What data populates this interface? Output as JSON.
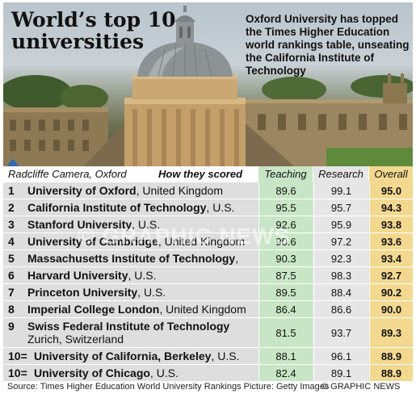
{
  "headline": "World’s top 10 universities",
  "intro": "Oxford University has topped the Times Higher Education world rankings table, unseating the California Institute of Technology",
  "caption": "Radcliffe Camera, Oxford",
  "how_scored": "How they scored",
  "watermark": "© GRAPHIC NEWS",
  "source": "Source: Times Higher Education World University Rankings   Picture: Getty Images",
  "credit": "© GRAPHIC NEWS",
  "colors": {
    "teaching": "#c8e6c5",
    "research": "#e6e6e6",
    "overall": "#f3d98f"
  },
  "chart_data": {
    "type": "table",
    "columns": [
      "Teaching",
      "Research",
      "Overall"
    ],
    "rows": [
      {
        "rank": "1",
        "name": "University of Oxford",
        "country": "United Kingdom",
        "teaching": "89.6",
        "research": "99.1",
        "overall": "95.0"
      },
      {
        "rank": "2",
        "name": "California Institute of Technology",
        "country": "U.S.",
        "teaching": "95.5",
        "research": "95.7",
        "overall": "94.3"
      },
      {
        "rank": "3",
        "name": "Stanford University",
        "country": "U.S.",
        "teaching": "92.6",
        "research": "95.9",
        "overall": "93.8"
      },
      {
        "rank": "4",
        "name": "University of Cambridge",
        "country": "United Kingdom",
        "teaching": "90.6",
        "research": "97.2",
        "overall": "93.6"
      },
      {
        "rank": "5",
        "name": "Massachusetts Institute of Technology",
        "country": "U.S.",
        "teaching": "90.3",
        "research": "92.3",
        "overall": "93.4"
      },
      {
        "rank": "6",
        "name": "Harvard University",
        "country": "U.S.",
        "teaching": "87.5",
        "research": "98.3",
        "overall": "92.7"
      },
      {
        "rank": "7",
        "name": "Princeton University",
        "country": "U.S.",
        "teaching": "89.5",
        "research": "88.4",
        "overall": "90.2"
      },
      {
        "rank": "8",
        "name": "Imperial College London",
        "country": "United Kingdom",
        "teaching": "86.4",
        "research": "86.6",
        "overall": "90.0"
      },
      {
        "rank": "9",
        "name": "Swiss Federal Institute of Technology",
        "country": "Zurich, Switzerland",
        "teaching": "81.5",
        "research": "93.7",
        "overall": "89.3"
      },
      {
        "rank": "10=",
        "name": "University of California, Berkeley",
        "country": "U.S.",
        "teaching": "88.1",
        "research": "96.1",
        "overall": "88.9"
      },
      {
        "rank": "10=",
        "name": "University of Chicago",
        "country": "U.S.",
        "teaching": "82.4",
        "research": "89.1",
        "overall": "88.9"
      }
    ]
  }
}
